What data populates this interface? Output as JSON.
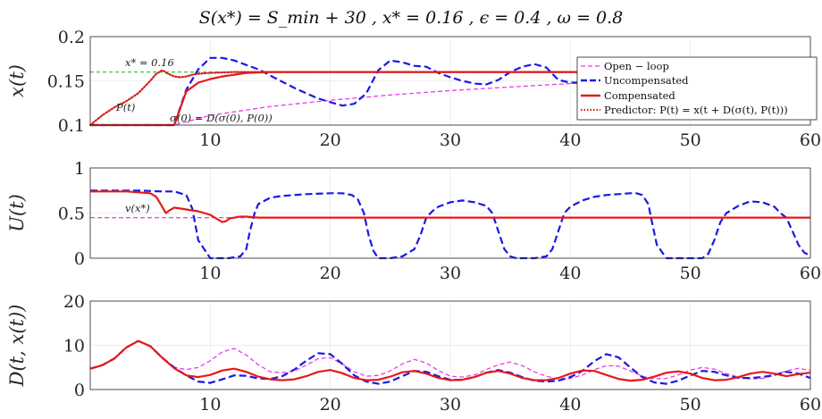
{
  "title": "S(x*) = S_min + 30 ,  x* = 0.16 ,  ϵ = 0.4 , ω = 0.8",
  "colors": {
    "open_loop": "#e83ee8",
    "uncompensated": "#1919e6",
    "compensated": "#e61919",
    "predictor": "#d62020",
    "reference": "#33cc33",
    "v_ref": "#e83ee8",
    "grid": "#e8e8e8",
    "axis": "#262626"
  },
  "chart_data": [
    {
      "type": "line",
      "ylabel": "x(t)",
      "xlim": [
        0,
        60
      ],
      "ylim": [
        0.1,
        0.2
      ],
      "xticks": [
        "10",
        "20",
        "30",
        "40",
        "50",
        "60"
      ],
      "yticks": [
        "0.1",
        "0.15",
        "0.2"
      ],
      "grid": true,
      "legend_position": "right",
      "annotations": [
        "x* = 0.16",
        "P(t)",
        "σ(0) = D(σ(0), P(0))"
      ],
      "reference_line": {
        "y": 0.16,
        "style": "dashed"
      },
      "series": [
        {
          "name": "Open − loop",
          "style": "dashed",
          "x": [
            0,
            7,
            10,
            15,
            20,
            25,
            30,
            35,
            40,
            45,
            50,
            55,
            60
          ],
          "y": [
            0.1,
            0.1,
            0.111,
            0.121,
            0.128,
            0.134,
            0.139,
            0.143,
            0.147,
            0.15,
            0.152,
            0.154,
            0.155
          ]
        },
        {
          "name": "Uncompensated",
          "style": "dashed",
          "x": [
            0,
            7,
            8,
            9,
            10,
            11,
            12,
            13,
            14,
            15,
            16,
            17,
            18,
            19,
            20,
            21,
            22,
            23,
            24,
            25,
            26,
            27,
            28,
            29,
            30,
            31,
            32,
            33,
            34,
            35,
            36,
            37,
            38,
            39,
            40,
            41,
            42,
            43,
            44,
            45,
            46,
            47,
            48,
            49,
            50,
            51,
            52,
            53,
            54,
            55,
            56,
            57,
            58,
            59,
            60
          ],
          "y": [
            0.1,
            0.1,
            0.14,
            0.163,
            0.176,
            0.176,
            0.173,
            0.168,
            0.163,
            0.156,
            0.149,
            0.142,
            0.136,
            0.13,
            0.126,
            0.122,
            0.124,
            0.136,
            0.162,
            0.173,
            0.171,
            0.167,
            0.166,
            0.159,
            0.154,
            0.15,
            0.147,
            0.146,
            0.151,
            0.16,
            0.166,
            0.169,
            0.165,
            0.151,
            0.148,
            0.148,
            0.15,
            0.154,
            0.158,
            0.162,
            0.165,
            0.17,
            0.173,
            0.17,
            0.168,
            0.166,
            0.163,
            0.159,
            0.156,
            0.152,
            0.15,
            0.152,
            0.16,
            0.168,
            0.169
          ]
        },
        {
          "name": "Compensated",
          "style": "solid",
          "x": [
            0,
            7,
            8,
            9,
            10,
            11,
            12,
            13,
            14,
            15,
            20,
            30,
            40,
            50,
            60
          ],
          "y": [
            0.1,
            0.1,
            0.138,
            0.148,
            0.152,
            0.155,
            0.157,
            0.159,
            0.1595,
            0.16,
            0.16,
            0.16,
            0.16,
            0.16,
            0.16
          ]
        },
        {
          "name": "Predictor: P(t) = x(t + D(σ(t), P(t)))",
          "style": "dotted",
          "x": [
            0,
            1,
            2,
            3,
            4,
            5,
            5.5,
            6,
            6.5,
            7,
            7.5,
            8,
            8.5,
            9,
            10,
            12,
            15,
            20,
            30,
            40,
            50,
            60
          ],
          "y": [
            0.1,
            0.111,
            0.12,
            0.127,
            0.136,
            0.15,
            0.158,
            0.162,
            0.158,
            0.155,
            0.154,
            0.155,
            0.157,
            0.158,
            0.159,
            0.16,
            0.16,
            0.16,
            0.16,
            0.16,
            0.16,
            0.16
          ]
        }
      ]
    },
    {
      "type": "line",
      "ylabel": "U(t)",
      "xlim": [
        0,
        60
      ],
      "ylim": [
        0,
        1
      ],
      "xticks": [
        "10",
        "20",
        "30",
        "40",
        "50",
        "60"
      ],
      "yticks": [
        "0",
        "0.5",
        "1"
      ],
      "grid": true,
      "annotations": [
        "v(x*)"
      ],
      "series": [
        {
          "name": "v(x*)",
          "style": "dashed",
          "x": [
            0,
            60
          ],
          "y": [
            0.45,
            0.45
          ]
        },
        {
          "name": "Uncompensated",
          "style": "dashed",
          "x": [
            0,
            4,
            6,
            7,
            8,
            8.5,
            9,
            10,
            11,
            11.5,
            12,
            12.5,
            13,
            13.3,
            13.7,
            14,
            15,
            16,
            18,
            20,
            21,
            21.8,
            22.3,
            22.8,
            23.2,
            23.6,
            24,
            25,
            26,
            27,
            27.5,
            28,
            28.5,
            29,
            30,
            31,
            32,
            33,
            33.5,
            34,
            34.5,
            35,
            35.5,
            36,
            37,
            38,
            38.5,
            39,
            39.5,
            40,
            41,
            42,
            43,
            44,
            45,
            45.5,
            46,
            46.5,
            46.8,
            47.2,
            48,
            49,
            50,
            51,
            51.5,
            52,
            52.5,
            53,
            54,
            55,
            56,
            57,
            57.5,
            58,
            58.5,
            59,
            59.5,
            60
          ],
          "y": [
            0.75,
            0.75,
            0.74,
            0.74,
            0.7,
            0.55,
            0.2,
            0.0,
            0.0,
            0.0,
            0.01,
            0.02,
            0.1,
            0.3,
            0.5,
            0.6,
            0.67,
            0.69,
            0.71,
            0.72,
            0.72,
            0.7,
            0.65,
            0.5,
            0.25,
            0.08,
            0.0,
            0.0,
            0.02,
            0.1,
            0.25,
            0.45,
            0.52,
            0.57,
            0.62,
            0.64,
            0.62,
            0.58,
            0.5,
            0.3,
            0.1,
            0.02,
            0.0,
            0.0,
            0.0,
            0.02,
            0.1,
            0.3,
            0.5,
            0.57,
            0.64,
            0.68,
            0.7,
            0.71,
            0.72,
            0.72,
            0.7,
            0.6,
            0.4,
            0.15,
            0.0,
            0.0,
            0.0,
            0.0,
            0.05,
            0.2,
            0.4,
            0.5,
            0.58,
            0.63,
            0.62,
            0.57,
            0.5,
            0.45,
            0.3,
            0.15,
            0.06,
            0.03
          ]
        },
        {
          "name": "Compensated",
          "style": "solid",
          "x": [
            0,
            3,
            4,
            5,
            5.5,
            6,
            6.3,
            6.6,
            7,
            7.5,
            8,
            9,
            10,
            10.5,
            11,
            11.3,
            11.6,
            12,
            12.5,
            13,
            14,
            20,
            30,
            40,
            50,
            60
          ],
          "y": [
            0.74,
            0.74,
            0.73,
            0.72,
            0.68,
            0.57,
            0.5,
            0.53,
            0.56,
            0.55,
            0.54,
            0.52,
            0.48,
            0.44,
            0.4,
            0.41,
            0.44,
            0.45,
            0.46,
            0.46,
            0.45,
            0.45,
            0.45,
            0.45,
            0.45,
            0.45
          ]
        }
      ]
    },
    {
      "type": "line",
      "ylabel": "D(t, x(t))",
      "xlim": [
        0,
        60
      ],
      "ylim": [
        0,
        20
      ],
      "xticks": [
        "10",
        "20",
        "30",
        "40",
        "50",
        "60"
      ],
      "yticks": [
        "0",
        "10",
        "20"
      ],
      "grid": true,
      "series": [
        {
          "name": "Open − loop",
          "style": "dashed",
          "x": [
            0,
            1,
            2,
            3,
            4,
            5,
            6,
            7,
            8,
            9,
            10,
            11,
            12,
            13,
            14,
            15,
            16,
            17,
            18,
            19,
            20,
            21,
            22,
            23,
            24,
            25,
            26,
            27,
            28,
            29,
            30,
            31,
            32,
            33,
            34,
            35,
            36,
            37,
            38,
            39,
            40,
            41,
            42,
            43,
            44,
            45,
            46,
            47,
            48,
            49,
            50,
            51,
            52,
            53,
            54,
            55,
            56,
            57,
            58,
            59,
            60
          ],
          "y": [
            4.7,
            5.5,
            7.0,
            9.5,
            11.0,
            9.8,
            7.2,
            5.0,
            4.5,
            5.0,
            6.5,
            8.5,
            9.3,
            7.8,
            5.6,
            4.0,
            3.8,
            4.2,
            5.5,
            7.0,
            7.2,
            5.8,
            4.0,
            3.0,
            3.2,
            4.2,
            5.8,
            6.8,
            6.0,
            4.3,
            3.0,
            2.8,
            3.3,
            4.5,
            5.6,
            6.2,
            5.4,
            4.0,
            3.0,
            2.4,
            2.5,
            3.3,
            4.5,
            5.4,
            5.3,
            4.2,
            3.0,
            2.4,
            2.5,
            3.3,
            4.4,
            5.0,
            4.6,
            3.6,
            2.8,
            2.4,
            2.5,
            3.2,
            4.2,
            4.8,
            4.3
          ]
        },
        {
          "name": "Uncompensated",
          "style": "solid",
          "x": [
            0,
            1,
            2,
            3,
            4,
            5,
            6,
            7,
            8,
            9,
            10,
            11,
            12,
            13,
            14,
            15,
            16,
            17,
            18,
            19,
            20,
            21,
            22,
            23,
            24,
            25,
            26,
            27,
            28,
            29,
            30,
            31,
            32,
            33,
            34,
            35,
            36,
            37,
            38,
            39,
            40,
            41,
            42,
            43,
            44,
            45,
            46,
            47,
            48,
            49,
            50,
            51,
            52,
            53,
            54,
            55,
            56,
            57,
            58,
            59,
            60
          ],
          "y": [
            4.7,
            5.5,
            7.0,
            9.5,
            11.0,
            9.8,
            7.2,
            5.0,
            3.2,
            1.8,
            1.5,
            2.3,
            3.2,
            3.1,
            2.5,
            2.4,
            3.0,
            4.5,
            6.5,
            8.2,
            8.0,
            5.8,
            3.2,
            1.8,
            1.3,
            1.8,
            3.0,
            4.2,
            4.0,
            3.0,
            2.2,
            2.2,
            2.8,
            3.8,
            4.4,
            3.8,
            2.8,
            2.0,
            1.8,
            2.0,
            2.8,
            4.2,
            6.4,
            8.0,
            7.3,
            5.0,
            2.8,
            1.6,
            1.3,
            2.0,
            3.2,
            4.2,
            4.0,
            3.2,
            2.6,
            2.6,
            2.8,
            3.3,
            4.0,
            3.6,
            2.6
          ]
        },
        {
          "name": "Compensated",
          "style": "solid",
          "x": [
            0,
            1,
            2,
            3,
            4,
            5,
            6,
            7,
            8,
            9,
            10,
            11,
            12,
            13,
            14,
            15,
            16,
            17,
            18,
            19,
            20,
            21,
            22,
            23,
            24,
            25,
            26,
            27,
            28,
            29,
            30,
            31,
            32,
            33,
            34,
            35,
            36,
            37,
            38,
            39,
            40,
            41,
            42,
            43,
            44,
            45,
            46,
            47,
            48,
            49,
            50,
            51,
            52,
            53,
            54,
            55,
            56,
            57,
            58,
            59,
            60
          ],
          "y": [
            4.7,
            5.5,
            7.0,
            9.5,
            11.0,
            9.8,
            7.2,
            4.8,
            3.2,
            2.8,
            3.3,
            4.3,
            4.7,
            4.0,
            2.9,
            2.3,
            2.1,
            2.3,
            3.0,
            4.0,
            4.4,
            3.7,
            2.6,
            2.1,
            2.2,
            2.9,
            3.9,
            4.2,
            3.6,
            2.6,
            2.1,
            2.2,
            2.8,
            3.8,
            4.2,
            3.6,
            2.6,
            2.1,
            2.1,
            2.6,
            3.6,
            4.3,
            4.2,
            3.3,
            2.4,
            2.0,
            2.2,
            2.9,
            3.8,
            4.1,
            3.6,
            2.6,
            2.1,
            2.2,
            2.8,
            3.6,
            4.0,
            3.6,
            3.0,
            3.5,
            3.8
          ]
        }
      ]
    }
  ]
}
